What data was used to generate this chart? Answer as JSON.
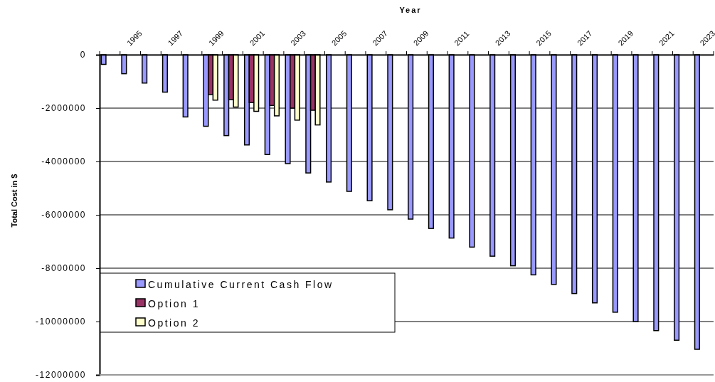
{
  "chart_data": {
    "type": "bar",
    "xlabel": "Year",
    "ylabel": "Total Cost in $",
    "categories": [
      null,
      "1995",
      null,
      "1997",
      null,
      "1999",
      null,
      "2001",
      null,
      "2003",
      null,
      "2005",
      null,
      "2007",
      null,
      "2009",
      null,
      "2011",
      null,
      "2013",
      null,
      "2015",
      null,
      "2017",
      null,
      "2019",
      null,
      "2021",
      null,
      "2023"
    ],
    "series": [
      {
        "name": "Cumulative Current Cash Flow",
        "color": "#9999ff",
        "values": [
          -360000,
          -710000,
          -1060000,
          -1400000,
          -2330000,
          -2680000,
          -3030000,
          -3380000,
          -3740000,
          -4080000,
          -4430000,
          -4770000,
          -5120000,
          -5470000,
          -5810000,
          -6160000,
          -6510000,
          -6870000,
          -7210000,
          -7550000,
          -7910000,
          -8250000,
          -8610000,
          -8950000,
          -9300000,
          -9650000,
          -10000000,
          -10340000,
          -10700000,
          -11040000
        ]
      },
      {
        "name": "Option 1",
        "color": "#993366",
        "values": [
          null,
          null,
          null,
          null,
          null,
          -1490000,
          -1680000,
          -1790000,
          -1900000,
          -2000000,
          -2080000,
          null,
          null,
          null,
          null,
          null,
          null,
          null,
          null,
          null,
          null,
          null,
          null,
          null,
          null,
          null,
          null,
          null,
          null,
          null
        ]
      },
      {
        "name": "Option 2",
        "color": "#ffffcc",
        "values": [
          null,
          null,
          null,
          null,
          null,
          -1700000,
          -1960000,
          -2120000,
          -2290000,
          -2450000,
          -2630000,
          null,
          null,
          null,
          null,
          null,
          null,
          null,
          null,
          null,
          null,
          null,
          null,
          null,
          null,
          null,
          null,
          null,
          null,
          null
        ]
      }
    ],
    "ylim": [
      -12000000,
      0
    ],
    "yticks": [
      -12000000,
      -10000000,
      -8000000,
      -6000000,
      -4000000,
      -2000000,
      0
    ],
    "grid": "y",
    "legend": "bottom left"
  }
}
